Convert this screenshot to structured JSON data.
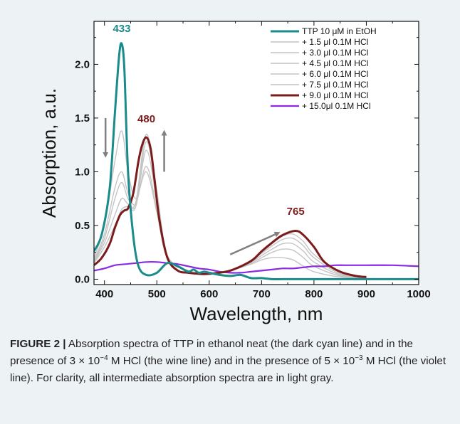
{
  "chart_data": {
    "type": "line",
    "xlabel": "Wavelength, nm",
    "ylabel": "Absorption, a.u.",
    "xlim": [
      380,
      1000
    ],
    "ylim": [
      -0.05,
      2.4
    ],
    "xticks": [
      400,
      500,
      600,
      700,
      800,
      900,
      1000
    ],
    "yticks": [
      0.0,
      0.5,
      1.0,
      1.5,
      2.0
    ],
    "ytick_labels": [
      "0.0",
      "0.5",
      "1.0",
      "1.5",
      "2.0"
    ],
    "legend_position": "top-right",
    "series": [
      {
        "name": "TTP 10 μM in EtOH",
        "color": "#1a8a8a",
        "width": 3,
        "x": [
          380,
          395,
          410,
          420,
          428,
          433,
          438,
          445,
          455,
          465,
          480,
          500,
          520,
          540,
          560,
          570,
          580,
          590,
          600,
          620,
          640,
          660,
          680,
          700,
          720,
          740,
          760,
          780,
          800,
          850,
          900,
          950,
          1000
        ],
        "y": [
          0.26,
          0.42,
          0.85,
          1.55,
          2.08,
          2.19,
          1.95,
          1.0,
          0.4,
          0.12,
          0.04,
          0.06,
          0.15,
          0.12,
          0.07,
          0.09,
          0.06,
          0.07,
          0.06,
          0.04,
          0.03,
          0.04,
          0.01,
          0.01,
          0.0,
          0.0,
          0.0,
          0.0,
          0.0,
          0.0,
          0.0,
          0.0,
          0.0
        ]
      },
      {
        "name": "+ 1.5 μl 0.1M HCl",
        "color": "#c4c4c4",
        "width": 1.4,
        "x": [
          380,
          400,
          420,
          433,
          445,
          460,
          480,
          500,
          520,
          560,
          600,
          640,
          680,
          700,
          720,
          740,
          760,
          780,
          800,
          850,
          900
        ],
        "y": [
          0.2,
          0.5,
          1.1,
          1.38,
          1.0,
          0.75,
          1.0,
          0.62,
          0.2,
          0.08,
          0.05,
          0.08,
          0.14,
          0.18,
          0.2,
          0.2,
          0.18,
          0.12,
          0.07,
          0.02,
          0.01
        ]
      },
      {
        "name": "+ 3.0 μl 0.1M HCl",
        "color": "#c4c4c4",
        "width": 1.4,
        "x": [
          380,
          400,
          420,
          433,
          445,
          460,
          480,
          500,
          520,
          560,
          600,
          640,
          680,
          700,
          720,
          740,
          760,
          780,
          800,
          850,
          900
        ],
        "y": [
          0.18,
          0.42,
          0.85,
          1.0,
          0.8,
          0.7,
          1.05,
          0.65,
          0.2,
          0.08,
          0.05,
          0.08,
          0.15,
          0.2,
          0.25,
          0.28,
          0.27,
          0.2,
          0.12,
          0.03,
          0.01
        ]
      },
      {
        "name": "+ 4.5 μl 0.1M HCl",
        "color": "#c4c4c4",
        "width": 1.4,
        "x": [
          380,
          400,
          420,
          433,
          445,
          460,
          480,
          500,
          520,
          560,
          600,
          640,
          680,
          700,
          720,
          740,
          760,
          780,
          800,
          850,
          900
        ],
        "y": [
          0.17,
          0.38,
          0.75,
          0.9,
          0.75,
          0.68,
          1.2,
          0.72,
          0.22,
          0.08,
          0.05,
          0.08,
          0.16,
          0.22,
          0.28,
          0.33,
          0.33,
          0.26,
          0.16,
          0.04,
          0.01
        ]
      },
      {
        "name": "+ 6.0 μl 0.1M HCl",
        "color": "#c4c4c4",
        "width": 1.4,
        "x": [
          380,
          400,
          420,
          433,
          445,
          460,
          480,
          500,
          520,
          560,
          600,
          640,
          680,
          700,
          720,
          740,
          760,
          780,
          800,
          850,
          900
        ],
        "y": [
          0.16,
          0.34,
          0.6,
          0.75,
          0.7,
          0.68,
          1.28,
          0.78,
          0.22,
          0.08,
          0.05,
          0.08,
          0.17,
          0.24,
          0.31,
          0.37,
          0.38,
          0.31,
          0.2,
          0.05,
          0.01
        ]
      },
      {
        "name": "+ 7.5 μl 0.1M HCl",
        "color": "#c4c4c4",
        "width": 1.4,
        "x": [
          380,
          400,
          420,
          433,
          445,
          460,
          480,
          500,
          520,
          560,
          600,
          640,
          680,
          700,
          720,
          740,
          760,
          780,
          800,
          850,
          900
        ],
        "y": [
          0.15,
          0.3,
          0.5,
          0.65,
          0.68,
          0.72,
          1.35,
          0.82,
          0.22,
          0.08,
          0.05,
          0.08,
          0.17,
          0.25,
          0.33,
          0.4,
          0.42,
          0.35,
          0.23,
          0.06,
          0.01
        ]
      },
      {
        "name": "+ 9.0 μl 0.1M HCl",
        "color": "#7a1c1c",
        "width": 3,
        "x": [
          380,
          395,
          410,
          420,
          430,
          438,
          445,
          455,
          465,
          472,
          480,
          488,
          495,
          505,
          520,
          540,
          560,
          580,
          600,
          640,
          680,
          700,
          720,
          740,
          765,
          780,
          800,
          820,
          850,
          880,
          900
        ],
        "y": [
          0.13,
          0.2,
          0.33,
          0.48,
          0.6,
          0.64,
          0.66,
          0.8,
          1.1,
          1.25,
          1.32,
          1.22,
          0.95,
          0.55,
          0.2,
          0.08,
          0.06,
          0.05,
          0.05,
          0.08,
          0.17,
          0.26,
          0.34,
          0.41,
          0.45,
          0.41,
          0.3,
          0.16,
          0.07,
          0.03,
          0.02
        ]
      },
      {
        "name": "+ 15.0μl 0.1M HCl",
        "color": "#8a2be2",
        "width": 2.2,
        "x": [
          380,
          400,
          420,
          440,
          460,
          480,
          500,
          520,
          540,
          560,
          580,
          600,
          620,
          640,
          660,
          680,
          700,
          720,
          740,
          760,
          780,
          800,
          820,
          840,
          860,
          880,
          900,
          950,
          1000
        ],
        "y": [
          0.08,
          0.1,
          0.13,
          0.14,
          0.15,
          0.16,
          0.16,
          0.15,
          0.14,
          0.12,
          0.1,
          0.09,
          0.07,
          0.06,
          0.06,
          0.07,
          0.08,
          0.09,
          0.1,
          0.1,
          0.11,
          0.12,
          0.12,
          0.13,
          0.13,
          0.13,
          0.13,
          0.13,
          0.12
        ]
      }
    ],
    "annotations": [
      {
        "text": "433",
        "x": 433,
        "y": 2.3,
        "color": "#1a8a8a"
      },
      {
        "text": "480",
        "x": 480,
        "y": 1.46,
        "color": "#7a1c1c"
      },
      {
        "text": "765",
        "x": 765,
        "y": 0.6,
        "color": "#7a1c1c"
      }
    ],
    "arrows": [
      {
        "direction": "down",
        "x": 402,
        "y_from": 1.5,
        "y_to": 1.15
      },
      {
        "direction": "up",
        "x": 514,
        "y_from": 1.0,
        "y_to": 1.37
      },
      {
        "direction": "up-right",
        "x_from": 640,
        "y_from": 0.23,
        "x_to": 732,
        "y_to": 0.43
      }
    ]
  },
  "caption": {
    "label": "FIGURE 2",
    "separator": "|",
    "part1": "Absorption spectra of TTP in ethanol neat (the dark cyan line) and in the presence of 3 × 10",
    "exp1": "−4",
    "part2": " M HCl (the wine line) and in the presence of 5 × 10",
    "exp2": "−3",
    "part3": " M HCl (the violet line). For clarity, all intermediate absorption spectra are in light gray."
  }
}
